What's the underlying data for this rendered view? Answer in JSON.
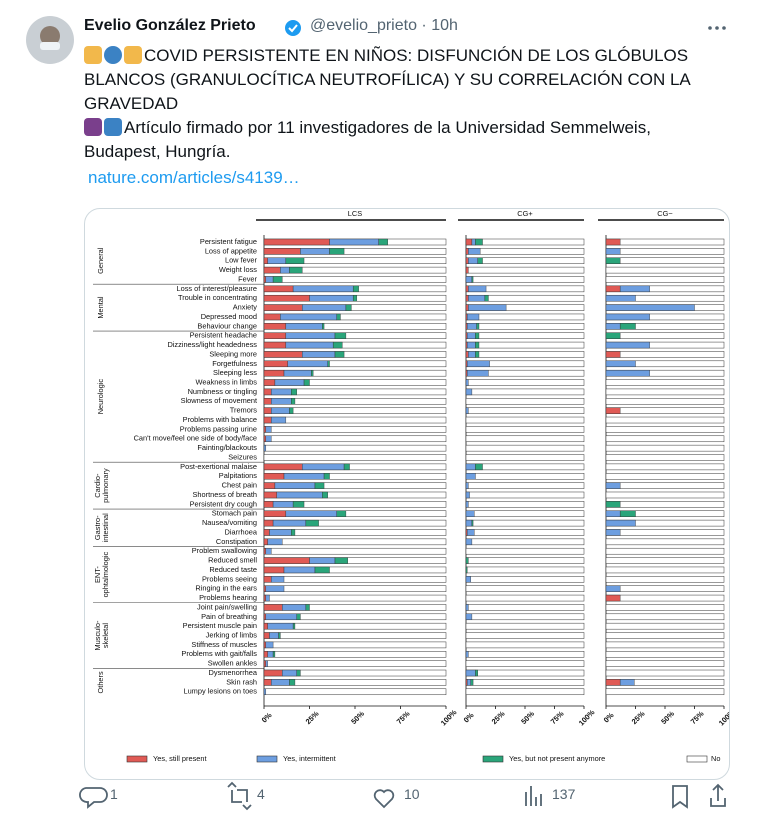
{
  "tweet": {
    "author": {
      "name": "Evelio González Prieto",
      "handle": "@evelio_prieto",
      "time": "10h"
    },
    "paragraphs": [
      "COVID PERSISTENTE EN NIÑOS: DISFUNCIÓN DE LOS GLÓBULOS BLANCOS (GRANULOCÍTICA NEUTROFÍLICA) Y SU CORRELACIÓN CON LA GRAVEDAD",
      "Artículo firmado por 11 investigadores de la Universidad Semmelweis, Budapest, Hungría."
    ],
    "link": "nature.com/articles/s4139…",
    "stats": {
      "replies": "1",
      "retweets": "4",
      "likes": "10",
      "views": "137"
    }
  },
  "chart_data": {
    "type": "bar",
    "stacked": true,
    "orientation": "horizontal",
    "groups": [
      {
        "label": [
          "General"
        ],
        "categories": [
          "Persistent fatigue",
          "Loss of appetite",
          "Low fever",
          "Weight loss",
          "Fever"
        ]
      },
      {
        "label": [
          "Mental"
        ],
        "categories": [
          "Loss of interest/pleasure",
          "Trouble in concentrating",
          "Anxiety",
          "Depressed mood",
          "Behaviour change"
        ]
      },
      {
        "label": [
          "Neurologic"
        ],
        "categories": [
          "Persistent headache",
          "Dizziness/light headedness",
          "Sleeping more",
          "Forgetfulness",
          "Sleeping less",
          "Weakness in limbs",
          "Numbness or tingling",
          "Slowness of movement",
          "Tremors",
          "Problems with balance",
          "Problems passing urine",
          "Can't move/feel one side of body/face",
          "Fainting/blackouts",
          "Seizures"
        ]
      },
      {
        "label": [
          "Cardio-",
          "pulmonary"
        ],
        "categories": [
          "Post-exertional malaise",
          "Palpitations",
          "Chest pain",
          "Shortness of breath",
          "Persistent dry cough"
        ]
      },
      {
        "label": [
          "Gastro-",
          "intestinal"
        ],
        "categories": [
          "Stomach pain",
          "Nausea/vomiting",
          "Diarrhoea",
          "Constipation"
        ]
      },
      {
        "label": [
          "ENT-",
          "ophtalmologic"
        ],
        "categories": [
          "Problem swallowing",
          "Reduced smell",
          "Reduced taste",
          "Problems seeing",
          "Ringing in the ears",
          "Problems hearing"
        ]
      },
      {
        "label": [
          "Musculo-",
          "skeletal"
        ],
        "categories": [
          "Joint pain/swelling",
          "Pain of breathing",
          "Persistent muscle pain",
          "Jerking of limbs",
          "Stiffness of muscles",
          "Problems with gait/falls",
          "Swollen ankles"
        ]
      },
      {
        "label": [
          "Others"
        ],
        "categories": [
          "Dysmenorrhea",
          "Skin rash",
          "Lumpy lesions on toes"
        ]
      }
    ],
    "series": [
      {
        "name": "Yes, still present",
        "color": "#e05a55"
      },
      {
        "name": "Yes, intermittent",
        "color": "#6d9ee0"
      },
      {
        "name": "Yes, but not present anymore",
        "color": "#2aa57a"
      },
      {
        "name": "No",
        "color": "#ffffff"
      }
    ],
    "xlim": [
      0,
      100
    ],
    "xticks": [
      {
        "value": 0,
        "label": "0%"
      },
      {
        "value": 25,
        "label": "25%"
      },
      {
        "value": 50,
        "label": "50%"
      },
      {
        "value": 75,
        "label": "75%"
      },
      {
        "value": 100,
        "label": "100%"
      }
    ],
    "panels": [
      {
        "title": "LCS",
        "values": [
          [
            36,
            20,
            2,
            9,
            1,
            16,
            25,
            21,
            9,
            12,
            12,
            12,
            21,
            13,
            11,
            6,
            4,
            4,
            4,
            4,
            1,
            1,
            0,
            0,
            21,
            11,
            6,
            7,
            5,
            12,
            5,
            3,
            2,
            1,
            25,
            11,
            4,
            1,
            1,
            10,
            1,
            2,
            3,
            1,
            2,
            1,
            10,
            4,
            0
          ],
          [
            27,
            16,
            10,
            5,
            4,
            33,
            24,
            24,
            31,
            20,
            27,
            26,
            18,
            22,
            15,
            16,
            11,
            11,
            10,
            8,
            3,
            3,
            1,
            0,
            23,
            22,
            22,
            25,
            11,
            28,
            18,
            12,
            8,
            3,
            14,
            17,
            7,
            10,
            2,
            13,
            17,
            14,
            5,
            4,
            3,
            1,
            8,
            10,
            1
          ],
          [
            5,
            8,
            10,
            7,
            5,
            3,
            2,
            3,
            2,
            1,
            6,
            5,
            5,
            1,
            1,
            3,
            3,
            2,
            2,
            0,
            0,
            0,
            0,
            0,
            3,
            3,
            5,
            3,
            6,
            5,
            7,
            2,
            0,
            0,
            7,
            8,
            0,
            0,
            0,
            2,
            2,
            1,
            1,
            0,
            1,
            0,
            2,
            3,
            0
          ]
        ]
      },
      {
        "title": "CG+",
        "values": [
          [
            5,
            2,
            2,
            2,
            0,
            2,
            2,
            2,
            1,
            1,
            1,
            1,
            2,
            1,
            1,
            0,
            0,
            0,
            0,
            0,
            0,
            0,
            0,
            0,
            0,
            0,
            0,
            0,
            0,
            0,
            0,
            1,
            0,
            0,
            0,
            0,
            0,
            0,
            0,
            0,
            0,
            0,
            0,
            0,
            0,
            0,
            0,
            1,
            0
          ],
          [
            3,
            10,
            8,
            0,
            5,
            15,
            14,
            32,
            10,
            8,
            7,
            7,
            6,
            19,
            18,
            2,
            5,
            0,
            2,
            0,
            0,
            0,
            0,
            0,
            8,
            8,
            2,
            3,
            2,
            7,
            5,
            6,
            5,
            0,
            0,
            0,
            4,
            0,
            0,
            2,
            5,
            0,
            0,
            0,
            2,
            0,
            8,
            3,
            0
          ],
          [
            6,
            0,
            4,
            0,
            1,
            0,
            3,
            0,
            0,
            2,
            3,
            3,
            3,
            0,
            0,
            0,
            0,
            0,
            0,
            0,
            0,
            0,
            0,
            0,
            6,
            0,
            0,
            0,
            0,
            0,
            1,
            0,
            0,
            0,
            2,
            1,
            0,
            0,
            0,
            0,
            0,
            0,
            0,
            0,
            0,
            0,
            2,
            2,
            0
          ]
        ]
      },
      {
        "title": "CG−",
        "values": [
          [
            12,
            0,
            0,
            0,
            0,
            12,
            0,
            0,
            0,
            0,
            0,
            0,
            12,
            0,
            0,
            0,
            0,
            0,
            12,
            0,
            0,
            0,
            0,
            0,
            0,
            0,
            0,
            0,
            0,
            0,
            0,
            0,
            0,
            0,
            0,
            0,
            0,
            0,
            12,
            0,
            0,
            0,
            0,
            0,
            0,
            0,
            0,
            12,
            0
          ],
          [
            0,
            12,
            0,
            0,
            0,
            25,
            25,
            75,
            37,
            12,
            0,
            37,
            0,
            25,
            37,
            0,
            0,
            0,
            0,
            0,
            0,
            0,
            0,
            0,
            0,
            0,
            12,
            0,
            0,
            12,
            25,
            12,
            0,
            0,
            0,
            0,
            0,
            12,
            0,
            0,
            0,
            0,
            0,
            0,
            0,
            0,
            0,
            12,
            0
          ],
          [
            0,
            0,
            12,
            0,
            0,
            0,
            0,
            0,
            0,
            13,
            12,
            0,
            0,
            0,
            0,
            0,
            0,
            0,
            0,
            0,
            0,
            0,
            0,
            0,
            0,
            0,
            0,
            0,
            12,
            13,
            0,
            0,
            0,
            0,
            0,
            0,
            0,
            0,
            0,
            0,
            0,
            0,
            0,
            0,
            0,
            0,
            0,
            0,
            0
          ]
        ]
      }
    ]
  }
}
